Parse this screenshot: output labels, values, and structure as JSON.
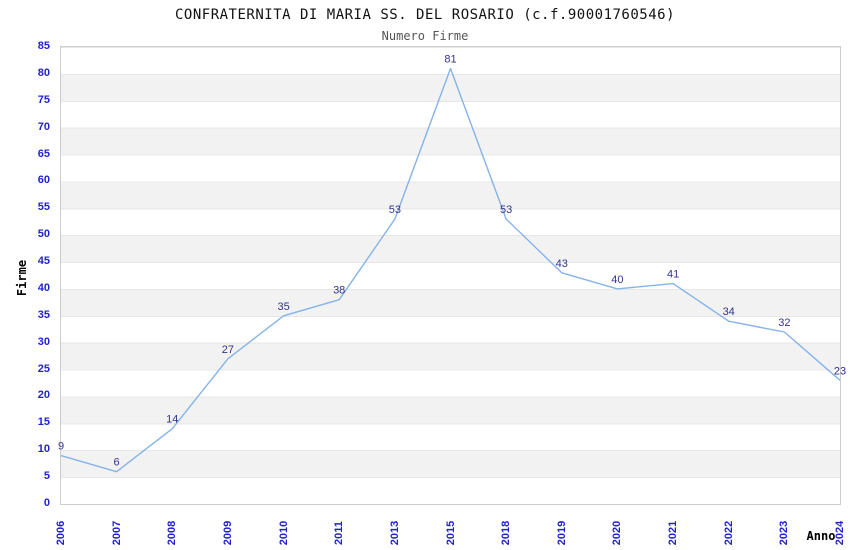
{
  "header": {
    "title": "CONFRATERNITA DI MARIA SS. DEL ROSARIO (c.f.90001760546)",
    "subtitle": "Numero Firme"
  },
  "chart_data": {
    "type": "line",
    "title": "CONFRATERNITA DI MARIA SS. DEL ROSARIO (c.f.90001760546)",
    "subtitle": "Numero Firme",
    "categories": [
      "2006",
      "2007",
      "2008",
      "2009",
      "2010",
      "2011",
      "2013",
      "2015",
      "2018",
      "2019",
      "2020",
      "2021",
      "2022",
      "2023",
      "2024"
    ],
    "values": [
      9,
      6,
      14,
      27,
      35,
      38,
      53,
      81,
      53,
      43,
      40,
      41,
      34,
      32,
      23
    ],
    "xlabel": "Anno",
    "ylabel": "Firme",
    "ylim": [
      0,
      85
    ],
    "ytick_step": 5,
    "grid": "horizontal-bands-alternating",
    "legend": "none",
    "colors": {
      "line": "#85b3e8",
      "tick_label": "#2222cc",
      "data_label": "#32328c",
      "band_gray": "#f2f2f2",
      "band_white": "#ffffff",
      "band_edge": "#e7e7e7",
      "plot_border": "#cccccc",
      "title": "#111111",
      "subtitle": "#555555"
    }
  }
}
